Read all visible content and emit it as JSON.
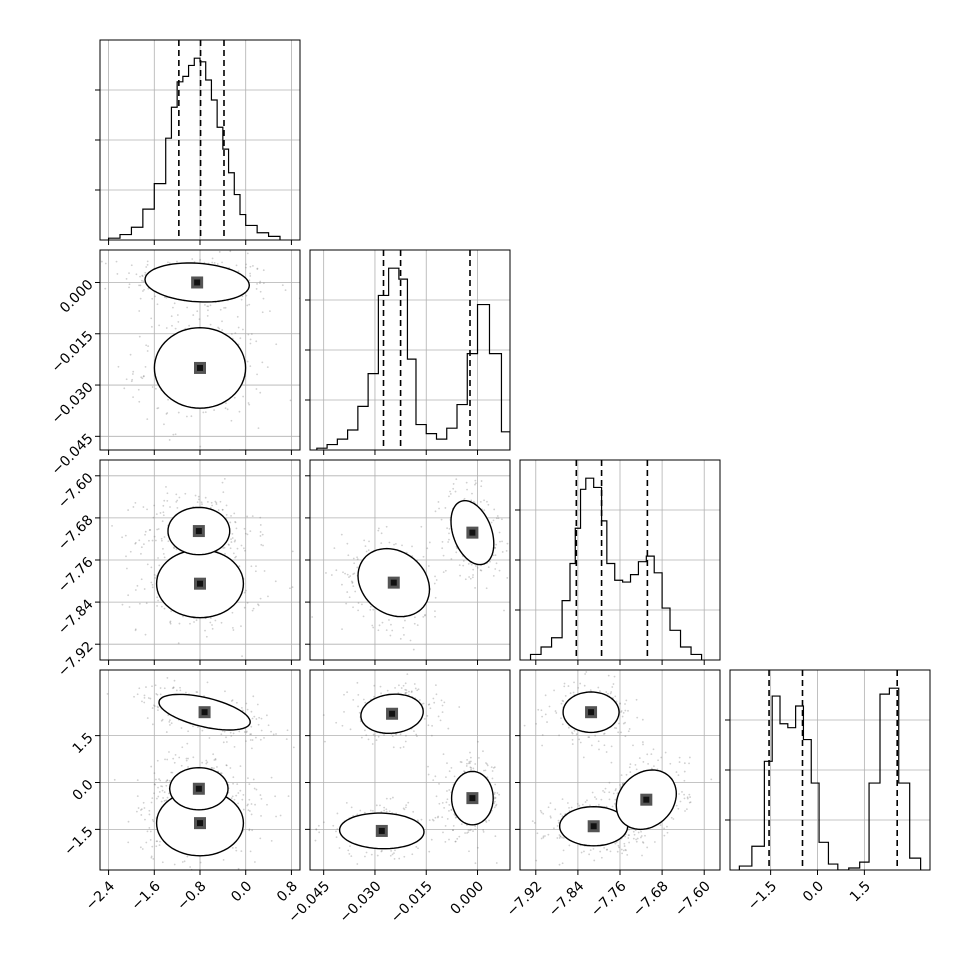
{
  "chart_data": {
    "type": "corner",
    "parameters": [
      {
        "ticks": [
          -2.4,
          -1.6,
          -0.8,
          0.0,
          0.8
        ],
        "tick_labels": [
          "−2.4",
          "−1.6",
          "−0.8",
          "0.0",
          "0.8"
        ],
        "range": [
          -2.55,
          0.95
        ],
        "quantiles": [
          -1.17,
          -0.79,
          -0.38
        ],
        "hist_edges": [
          -2.4,
          -2.2,
          -2.0,
          -1.8,
          -1.6,
          -1.4,
          -1.3,
          -1.2,
          -1.1,
          -1.0,
          -0.9,
          -0.8,
          -0.7,
          -0.6,
          -0.5,
          -0.4,
          -0.3,
          -0.2,
          -0.1,
          0.0,
          0.2,
          0.4,
          0.6
        ],
        "hist_counts": [
          1,
          3,
          7,
          17,
          31,
          56,
          73,
          87,
          90,
          96,
          100,
          98,
          88,
          77,
          62,
          50,
          37,
          25,
          14,
          8,
          4,
          2
        ]
      },
      {
        "ticks": [
          -0.045,
          -0.03,
          -0.015,
          0.0
        ],
        "tick_labels": [
          "−0.045",
          "−0.030",
          "−0.015",
          "0.000"
        ],
        "range": [
          -0.049,
          0.0095
        ],
        "quantiles": [
          -0.0275,
          -0.0225,
          -0.0022
        ],
        "hist_edges": [
          -0.047,
          -0.044,
          -0.041,
          -0.038,
          -0.035,
          -0.032,
          -0.029,
          -0.026,
          -0.023,
          -0.0205,
          -0.018,
          -0.015,
          -0.012,
          -0.009,
          -0.006,
          -0.003,
          0.0,
          0.0035,
          0.007,
          0.0095
        ],
        "hist_counts": [
          1,
          3,
          6,
          11,
          24,
          42,
          85,
          100,
          94,
          50,
          14,
          9,
          6,
          12,
          25,
          53,
          80,
          53,
          10
        ]
      },
      {
        "ticks": [
          -7.92,
          -7.84,
          -7.76,
          -7.68,
          -7.6
        ],
        "tick_labels": [
          "−7.92",
          "−7.84",
          "−7.76",
          "−7.68",
          "−7.60"
        ],
        "range": [
          -7.95,
          -7.57
        ],
        "quantiles": [
          -7.843,
          -7.795,
          -7.708
        ],
        "hist_edges": [
          -7.93,
          -7.91,
          -7.89,
          -7.87,
          -7.855,
          -7.845,
          -7.835,
          -7.825,
          -7.81,
          -7.795,
          -7.785,
          -7.77,
          -7.755,
          -7.74,
          -7.725,
          -7.71,
          -7.695,
          -7.68,
          -7.665,
          -7.645,
          -7.625,
          -7.605
        ],
        "hist_counts": [
          3,
          7,
          12,
          32,
          52,
          71,
          92,
          98,
          93,
          75,
          52,
          43,
          42,
          46,
          53,
          56,
          47,
          28,
          16,
          7,
          3
        ]
      },
      {
        "ticks": [
          -1.5,
          0.0,
          1.5
        ],
        "tick_labels": [
          "−1.5",
          "0.0",
          "1.5"
        ],
        "range": [
          -2.8,
          3.6
        ],
        "quantiles": [
          -1.55,
          -0.48,
          2.55
        ],
        "hist_edges": [
          -2.5,
          -2.1,
          -1.7,
          -1.45,
          -1.2,
          -0.95,
          -0.7,
          -0.45,
          -0.2,
          0.05,
          0.35,
          0.65,
          1.0,
          1.35,
          1.65,
          2.0,
          2.3,
          2.6,
          2.95,
          3.3
        ],
        "hist_counts": [
          2,
          12,
          55,
          88,
          74,
          72,
          83,
          66,
          44,
          14,
          3,
          0,
          1,
          4,
          44,
          89,
          92,
          44,
          6
        ]
      }
    ],
    "blobs": [
      {
        "row": 1,
        "col": 0,
        "cx": -0.85,
        "cy": 0.0,
        "sx": 0.48,
        "sy": 0.003,
        "rho": -0.15,
        "levels": [
          0.7,
          1.3,
          1.9
        ]
      },
      {
        "row": 1,
        "col": 0,
        "cx": -0.8,
        "cy": -0.025,
        "sx": 0.42,
        "sy": 0.0062,
        "rho": 0.0,
        "levels": [
          0.6,
          1.2,
          1.9
        ]
      },
      {
        "row": 2,
        "col": 0,
        "cx": -0.8,
        "cy": -7.805,
        "sx": 0.4,
        "sy": 0.034,
        "rho": 0.0,
        "levels": [
          0.6,
          1.2,
          1.9
        ]
      },
      {
        "row": 2,
        "col": 0,
        "cx": -0.82,
        "cy": -7.705,
        "sx": 0.36,
        "sy": 0.03,
        "rho": 0.0,
        "levels": [
          0.9,
          1.5
        ]
      },
      {
        "row": 2,
        "col": 1,
        "cx": -0.0245,
        "cy": -7.803,
        "sx": 0.0055,
        "sy": 0.034,
        "rho": -0.2,
        "levels": [
          0.6,
          1.2,
          1.9
        ]
      },
      {
        "row": 2,
        "col": 1,
        "cx": -0.0015,
        "cy": -7.708,
        "sx": 0.0033,
        "sy": 0.032,
        "rho": -0.35,
        "levels": [
          0.7,
          1.3,
          1.9
        ]
      },
      {
        "row": 3,
        "col": 0,
        "cx": -0.72,
        "cy": 2.25,
        "sx": 0.42,
        "sy": 0.3,
        "rho": -0.55,
        "levels": [
          0.7,
          1.3,
          1.9
        ]
      },
      {
        "row": 3,
        "col": 0,
        "cx": -0.8,
        "cy": -1.3,
        "sx": 0.4,
        "sy": 0.55,
        "rho": 0.0,
        "levels": [
          0.6,
          1.2,
          1.9
        ]
      },
      {
        "row": 3,
        "col": 0,
        "cx": -0.82,
        "cy": -0.2,
        "sx": 0.34,
        "sy": 0.45,
        "rho": 0.0,
        "levels": [
          0.9,
          1.5
        ]
      },
      {
        "row": 3,
        "col": 1,
        "cx": -0.025,
        "cy": 2.2,
        "sx": 0.0048,
        "sy": 0.33,
        "rho": 0.1,
        "levels": [
          0.7,
          1.3,
          1.9
        ]
      },
      {
        "row": 3,
        "col": 1,
        "cx": -0.028,
        "cy": -1.55,
        "sx": 0.0065,
        "sy": 0.3,
        "rho": -0.05,
        "levels": [
          0.7,
          1.3,
          1.9
        ]
      },
      {
        "row": 3,
        "col": 1,
        "cx": -0.0015,
        "cy": -0.5,
        "sx": 0.0032,
        "sy": 0.45,
        "rho": 0.0,
        "levels": [
          0.7,
          1.3,
          1.9
        ]
      },
      {
        "row": 3,
        "col": 2,
        "cx": -7.815,
        "cy": 2.25,
        "sx": 0.028,
        "sy": 0.34,
        "rho": 0.0,
        "levels": [
          0.7,
          1.3,
          1.9
        ]
      },
      {
        "row": 3,
        "col": 2,
        "cx": -7.81,
        "cy": -1.4,
        "sx": 0.034,
        "sy": 0.33,
        "rho": 0.0,
        "levels": [
          0.6,
          1.2,
          1.9
        ]
      },
      {
        "row": 3,
        "col": 2,
        "cx": -7.71,
        "cy": -0.55,
        "sx": 0.03,
        "sy": 0.5,
        "rho": 0.2,
        "levels": [
          0.6,
          1.2,
          1.9
        ]
      }
    ]
  }
}
